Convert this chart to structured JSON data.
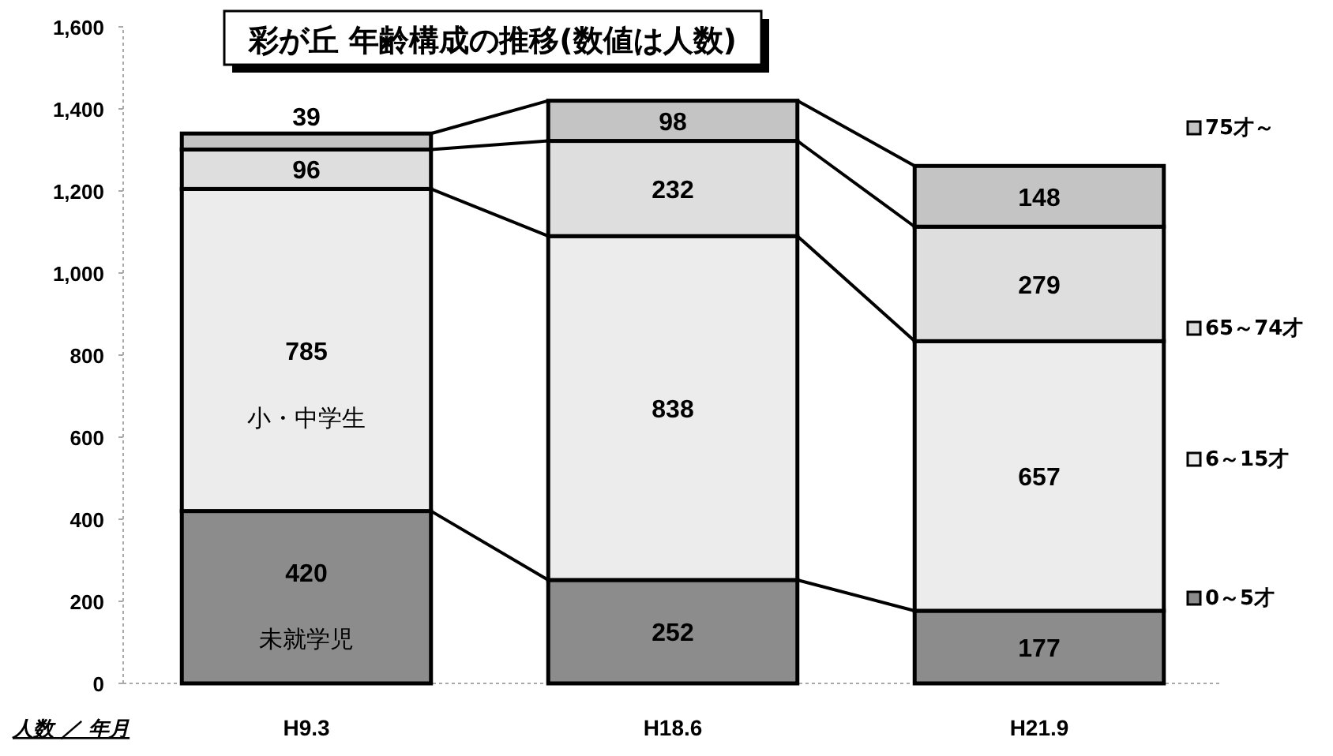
{
  "chart_data": {
    "type": "bar",
    "stacked": true,
    "title": "彩が丘 年齢構成の推移(数値は人数)",
    "xlabel": "人数 ／ 年月",
    "categories": [
      "H9.3",
      "H18.6",
      "H21.9"
    ],
    "series": [
      {
        "name": "0～5才",
        "color": "#8c8c8c",
        "values": [
          420,
          252,
          177
        ]
      },
      {
        "name": "6～15才",
        "color": "#ececec",
        "values": [
          785,
          838,
          657
        ]
      },
      {
        "name": "65～74才",
        "color": "#dedede",
        "values": [
          96,
          232,
          279
        ]
      },
      {
        "name": "75才～",
        "color": "#c4c4c4",
        "values": [
          39,
          98,
          148
        ]
      }
    ],
    "ylim": [
      0,
      1600
    ],
    "yticks": [
      0,
      200,
      400,
      600,
      800,
      {
        "value": 1000,
        "label": "1,000"
      },
      {
        "value": 1200,
        "label": "1,200"
      },
      {
        "value": 1400,
        "label": "1,400"
      },
      {
        "value": 1600,
        "label": "1,600"
      }
    ],
    "data_labels": true,
    "legend": "right",
    "grid": false,
    "annotations": [
      "小・中学生",
      "未就学児"
    ]
  }
}
